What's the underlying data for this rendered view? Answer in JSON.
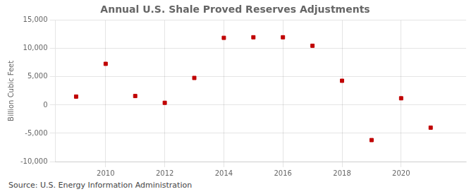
{
  "chart_data": {
    "type": "scatter",
    "title": "Annual U.S. Shale Proved Reserves Adjustments",
    "y_label": "Billion Cubic Feet",
    "annotations": [
      "Source: U.S. Energy Information Administration"
    ],
    "x": [
      2009,
      2010,
      2011,
      2012,
      2013,
      2014,
      2015,
      2016,
      2017,
      2018,
      2019,
      2020,
      2021
    ],
    "values": [
      1500,
      7300,
      1600,
      400,
      4800,
      11900,
      12000,
      12000,
      10500,
      4300,
      -6200,
      1200,
      -4000
    ],
    "color": "#c00000",
    "marker": "square",
    "xlim": [
      2008.3,
      2022.2
    ],
    "xticks": [
      2010,
      2012,
      2014,
      2016,
      2018,
      2020
    ],
    "ylim": [
      -10000,
      15000
    ],
    "yticks": [
      {
        "value": -10000,
        "label": "-10,000"
      },
      {
        "value": -5000,
        "label": "-5,000"
      },
      0,
      {
        "value": 5000,
        "label": "5,000"
      },
      {
        "value": 10000,
        "label": "10,000"
      },
      {
        "value": 15000,
        "label": "15,000"
      }
    ],
    "grid": true
  }
}
